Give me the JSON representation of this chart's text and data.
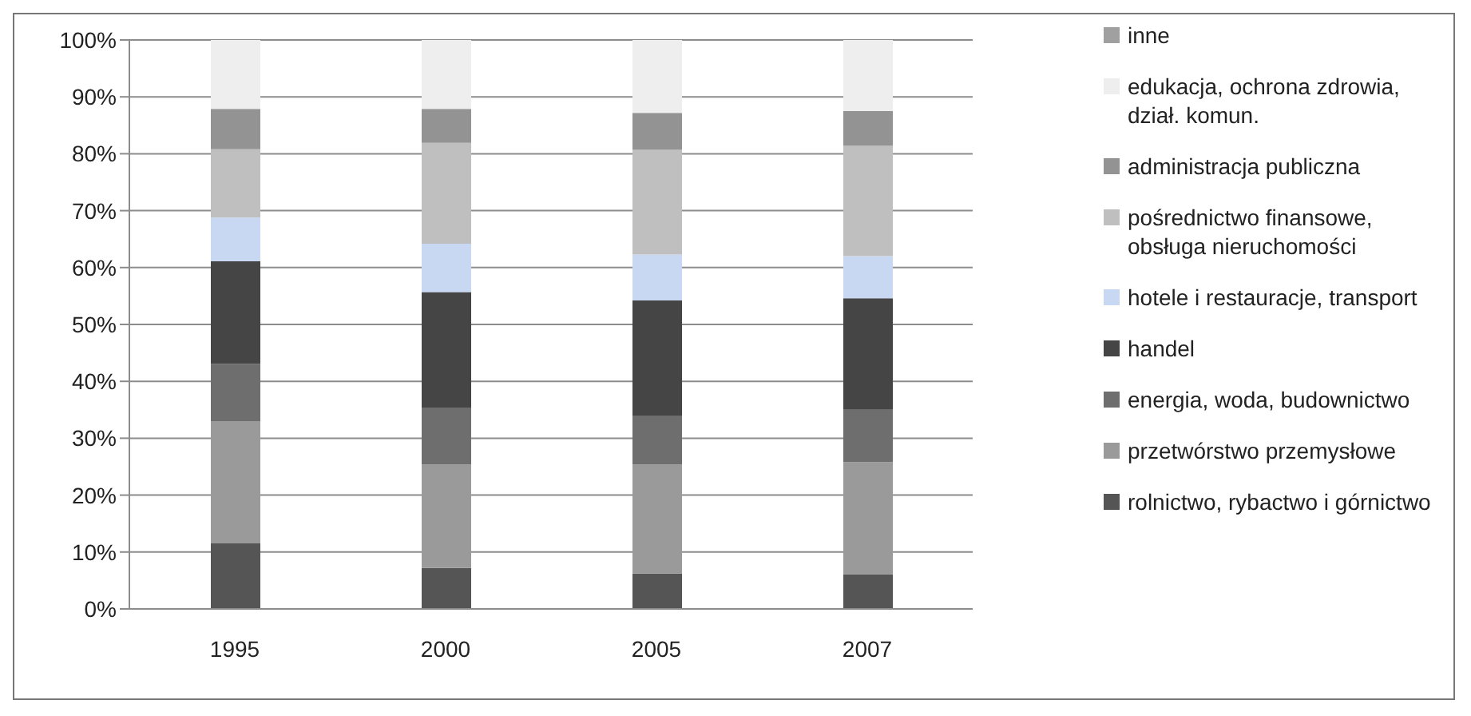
{
  "chart_data": {
    "type": "bar",
    "stacked": true,
    "categories": [
      "1995",
      "2000",
      "2005",
      "2007"
    ],
    "series": [
      {
        "name": "rolnictwo, rybactwo i górnictwo",
        "color": "#555555",
        "values": [
          11.5,
          7.2,
          6.2,
          6.1
        ]
      },
      {
        "name": "przetwórstwo przemysłowe",
        "color": "#9a9a9a",
        "values": [
          21.5,
          18.2,
          19.2,
          19.7
        ]
      },
      {
        "name": "energia, woda, budownictwo",
        "color": "#6e6e6e",
        "values": [
          10.1,
          10.0,
          8.5,
          9.2
        ]
      },
      {
        "name": "handel",
        "color": "#454545",
        "values": [
          18.0,
          20.3,
          20.3,
          19.6
        ]
      },
      {
        "name": "hotele i restauracje, transport",
        "color": "#c9d8f2",
        "values": [
          7.7,
          8.5,
          8.1,
          7.4
        ]
      },
      {
        "name": "pośrednictwo finansowe, obsługa nieruchomości",
        "color": "#bfbfbf",
        "values": [
          12.0,
          17.7,
          18.4,
          19.4
        ]
      },
      {
        "name": "administracja publiczna",
        "color": "#939393",
        "values": [
          7.1,
          6.0,
          6.5,
          6.1
        ]
      },
      {
        "name": "edukacja, ochrona zdrowia, dział. komun.",
        "color": "#eeeeee",
        "values": [
          12.1,
          12.1,
          12.8,
          12.5
        ]
      },
      {
        "name": "inne",
        "color": "#a0a0a0",
        "values": [
          null,
          null,
          null,
          null
        ]
      }
    ],
    "ylim": [
      0,
      100
    ],
    "yticks": [
      {
        "value": 0,
        "label": "0%"
      },
      {
        "value": 10,
        "label": "10%"
      },
      {
        "value": 20,
        "label": "20%"
      },
      {
        "value": 30,
        "label": "30%"
      },
      {
        "value": 40,
        "label": "40%"
      },
      {
        "value": 50,
        "label": "50%"
      },
      {
        "value": 60,
        "label": "60%"
      },
      {
        "value": 70,
        "label": "70%"
      },
      {
        "value": 80,
        "label": "80%"
      },
      {
        "value": 90,
        "label": "90%"
      },
      {
        "value": 100,
        "label": "100%"
      }
    ],
    "grid": "y",
    "legend": "right"
  }
}
